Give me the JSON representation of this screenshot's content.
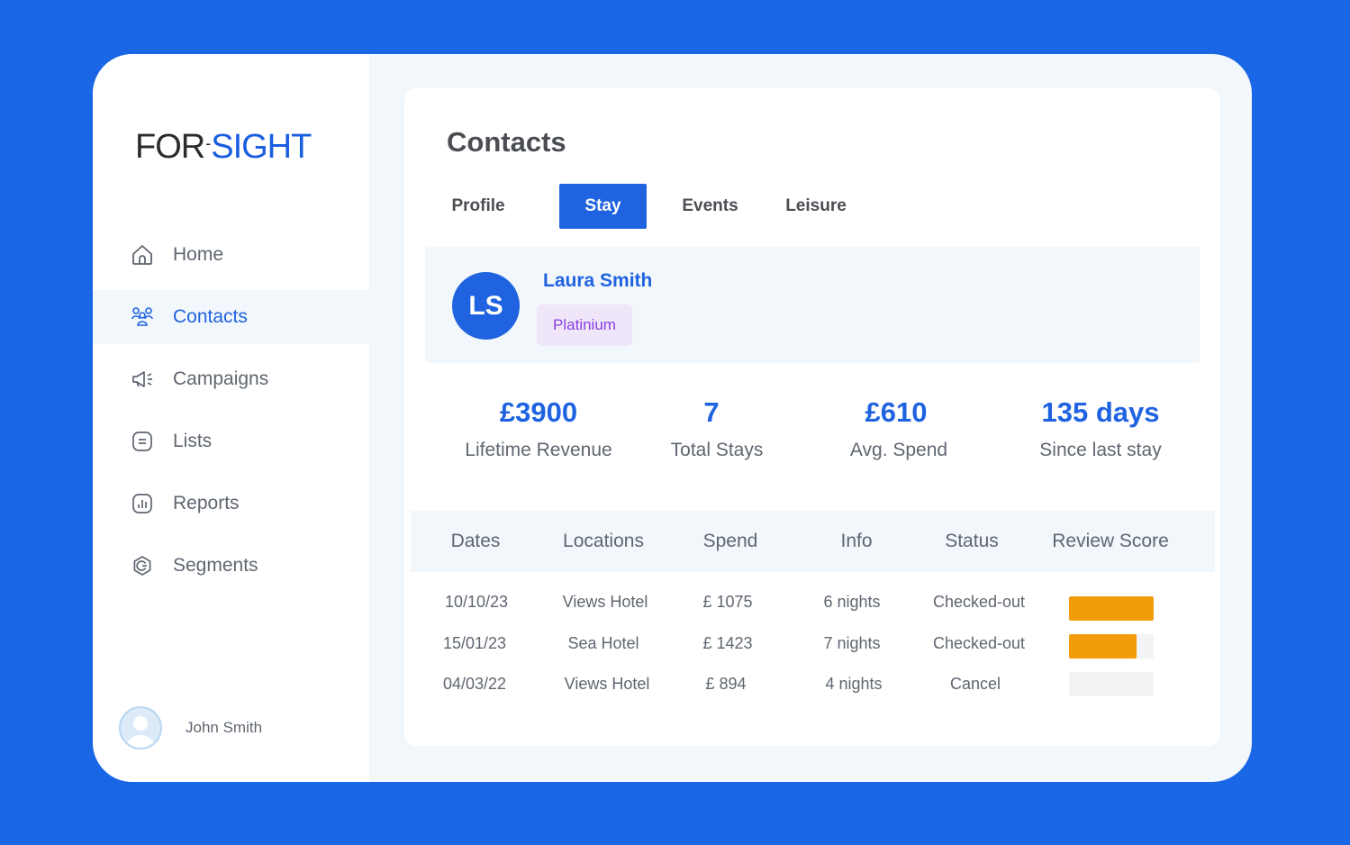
{
  "brand": {
    "logo_left": "FOR",
    "logo_sep": "-",
    "logo_right": "SIGHT"
  },
  "sidebar": {
    "items": [
      {
        "label": "Home",
        "icon": "home-icon"
      },
      {
        "label": "Contacts",
        "icon": "contacts-icon",
        "active": true
      },
      {
        "label": "Campaigns",
        "icon": "megaphone-icon"
      },
      {
        "label": "Lists",
        "icon": "list-icon"
      },
      {
        "label": "Reports",
        "icon": "reports-icon"
      },
      {
        "label": "Segments",
        "icon": "segments-icon"
      }
    ],
    "user": {
      "name": "John Smith"
    }
  },
  "page": {
    "title": "Contacts"
  },
  "tabs": [
    {
      "label": "Profile"
    },
    {
      "label": "Stay",
      "active": true
    },
    {
      "label": "Events"
    },
    {
      "label": "Leisure"
    }
  ],
  "contact": {
    "initials": "LS",
    "name": "Laura Smith",
    "tier": "Platinium"
  },
  "stats": [
    {
      "value": "£3900",
      "label": "Lifetime Revenue"
    },
    {
      "value": "7",
      "label": "Total Stays"
    },
    {
      "value": "£610",
      "label": "Avg. Spend"
    },
    {
      "value": "135 days",
      "label": "Since last stay"
    }
  ],
  "table": {
    "headers": [
      "Dates",
      "Locations",
      "Spend",
      "Info",
      "Status",
      "Review Score"
    ],
    "rows": [
      {
        "date": "10/10/23",
        "location": "Views Hotel",
        "spend": "£ 1075",
        "info": "6 nights",
        "status": "Checked-out",
        "review_score": 1.0
      },
      {
        "date": "15/01/23",
        "location": "Sea Hotel",
        "spend": "£ 1423",
        "info": "7 nights",
        "status": "Checked-out",
        "review_score": 0.8
      },
      {
        "date": "04/03/22",
        "location": "Views Hotel",
        "spend": "£ 894",
        "info": "4 nights",
        "status": "Cancel",
        "review_score": 0.0
      }
    ]
  },
  "colors": {
    "background": "#1A67E6",
    "accent": "#1F63E0",
    "score_bar": "#F39C0B",
    "score_track": "#F1F3F5",
    "badge_text": "#8A3FE0",
    "badge_bg": "#F0E6FA"
  }
}
